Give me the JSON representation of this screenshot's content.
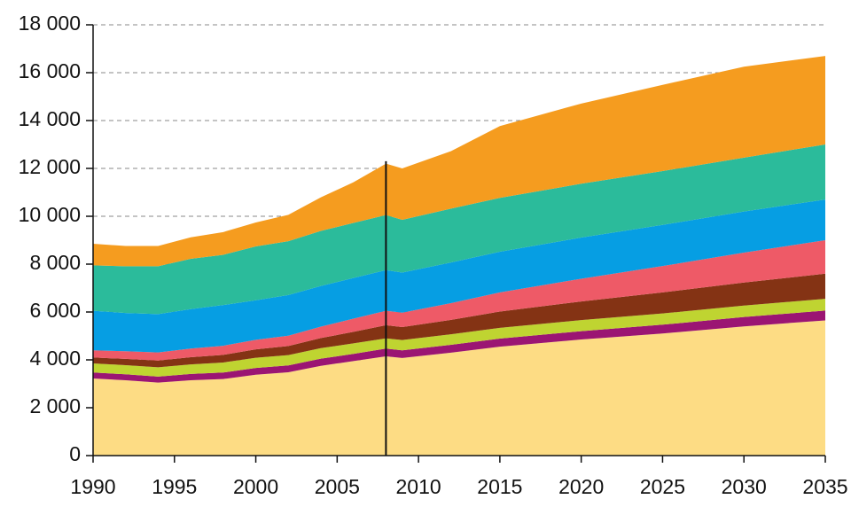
{
  "chart_data": {
    "type": "stacked_area",
    "x": [
      1990,
      1992,
      1994,
      1996,
      1998,
      2000,
      2002,
      2004,
      2006,
      2008,
      2009,
      2012,
      2015,
      2020,
      2025,
      2030,
      2035
    ],
    "series": [
      {
        "color": "#fddc84",
        "values": [
          3220,
          3150,
          3050,
          3150,
          3200,
          3380,
          3480,
          3750,
          3950,
          4150,
          4080,
          4300,
          4550,
          4850,
          5100,
          5400,
          5650
        ]
      },
      {
        "color": "#9b1573",
        "values": [
          250,
          250,
          250,
          260,
          270,
          280,
          290,
          300,
          300,
          320,
          320,
          330,
          340,
          350,
          370,
          390,
          410
        ]
      },
      {
        "color": "#bfd431",
        "values": [
          380,
          380,
          390,
          400,
          420,
          430,
          430,
          440,
          440,
          430,
          430,
          440,
          450,
          460,
          470,
          480,
          490
        ]
      },
      {
        "color": "#843314",
        "values": [
          250,
          260,
          280,
          300,
          320,
          350,
          380,
          420,
          480,
          550,
          540,
          600,
          680,
          780,
          880,
          960,
          1050
        ]
      },
      {
        "color": "#ee5a67",
        "values": [
          300,
          320,
          340,
          360,
          380,
          400,
          430,
          480,
          550,
          600,
          600,
          700,
          800,
          950,
          1100,
          1250,
          1400
        ]
      },
      {
        "color": "#069ee3",
        "values": [
          1650,
          1600,
          1600,
          1650,
          1700,
          1650,
          1700,
          1700,
          1700,
          1700,
          1680,
          1700,
          1700,
          1720,
          1720,
          1720,
          1700
        ]
      },
      {
        "color": "#2bbb9b",
        "values": [
          1900,
          1950,
          2000,
          2100,
          2100,
          2250,
          2250,
          2300,
          2300,
          2300,
          2200,
          2250,
          2250,
          2250,
          2250,
          2250,
          2300
        ]
      },
      {
        "color": "#f59c1f",
        "values": [
          900,
          850,
          850,
          900,
          950,
          1000,
          1100,
          1400,
          1700,
          2150,
          2150,
          2400,
          3000,
          3350,
          3600,
          3800,
          3700
        ]
      }
    ],
    "xlim": [
      1990,
      2035
    ],
    "xticks": [
      1990,
      1995,
      2000,
      2005,
      2010,
      2015,
      2020,
      2025,
      2030,
      2035
    ],
    "ylim": [
      0,
      18000
    ],
    "yticks": [
      0,
      {
        "value": 2000,
        "label": "2 000"
      },
      {
        "value": 4000,
        "label": "4 000"
      },
      {
        "value": 6000,
        "label": "6 000"
      },
      {
        "value": 8000,
        "label": "8 000"
      },
      {
        "value": 10000,
        "label": "10 000"
      },
      {
        "value": 12000,
        "label": "12 000"
      },
      {
        "value": 14000,
        "label": "14 000"
      },
      {
        "value": 16000,
        "label": "16 000"
      },
      {
        "value": 18000,
        "label": "18 000"
      }
    ],
    "grid": true,
    "vline_x": 2008
  }
}
